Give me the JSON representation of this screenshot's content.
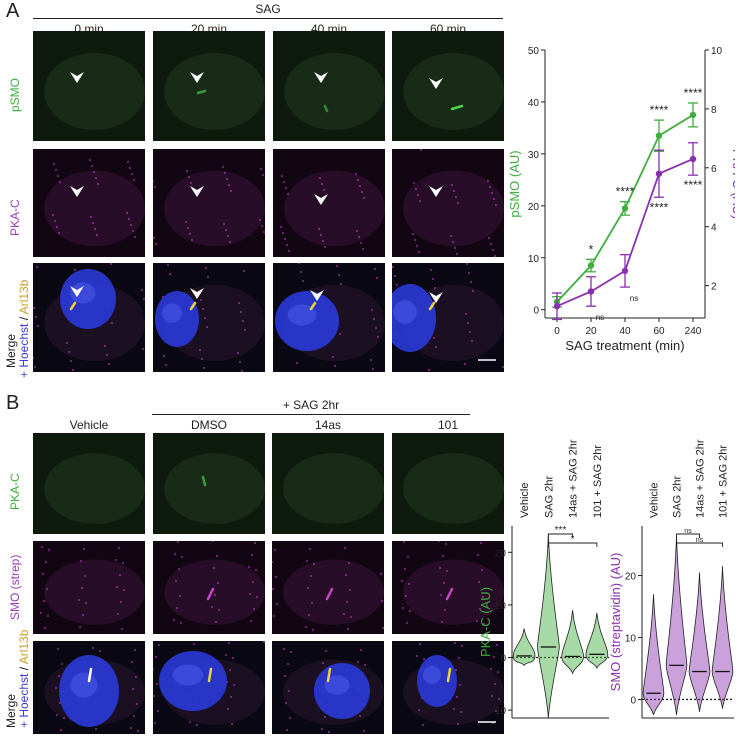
{
  "panel_a": {
    "label": "A",
    "treatment": "SAG",
    "timepoints": [
      "0 min",
      "20 min",
      "40 min",
      "60 min"
    ],
    "rows": [
      {
        "text": "pSMO",
        "color": "#3fae3f"
      },
      {
        "text": "PKA-C",
        "color": "#9b3db8"
      }
    ],
    "merge_label": {
      "line1": "Merge",
      "line2": [
        {
          "text": "+ Hoechst",
          "color": "#3a3ad0"
        },
        {
          "text": " / ",
          "color": "#222222"
        },
        {
          "text": "Arl13b",
          "color": "#c9a227"
        }
      ]
    }
  },
  "panel_b": {
    "label": "B",
    "treatment": "+ SAG 2hr",
    "conditions": [
      "Vehicle",
      "DMSO",
      "14as",
      "101"
    ],
    "rows": [
      {
        "text": "PKA-C",
        "color": "#3fae3f"
      },
      {
        "text": "SMO (strep)",
        "color": "#9b3db8"
      }
    ],
    "merge_label": {
      "line1": "Merge",
      "line2": [
        {
          "text": "+ Hoechst",
          "color": "#3a3ad0"
        },
        {
          "text": " / ",
          "color": "#222222"
        },
        {
          "text": "Arl13b",
          "color": "#c9a227"
        }
      ]
    }
  },
  "colors": {
    "green": "#3fae3f",
    "purple": "#8a2fb0",
    "nucleus": "#2a3ad8",
    "cilium_yellow": "#e9d23a"
  },
  "chart_data": [
    {
      "type": "line",
      "x": [
        "0",
        "20",
        "40",
        "60",
        "240"
      ],
      "xlabel": "SAG treatment (min)",
      "series": [
        {
          "name": "pSMO",
          "axis": "left",
          "color": "#3fae3f",
          "values": [
            1.5,
            8.5,
            19.5,
            33.5,
            37.5
          ],
          "error": [
            1.0,
            1.2,
            1.3,
            3.0,
            2.3
          ],
          "significance": [
            "",
            "*",
            "****",
            "****",
            "****"
          ]
        },
        {
          "name": "PKA-C",
          "axis": "right",
          "color": "#8a2fb0",
          "values": [
            1.3,
            1.8,
            2.5,
            5.8,
            6.3
          ],
          "error": [
            0.45,
            0.5,
            0.55,
            0.8,
            0.55
          ],
          "significance": [
            "",
            "ns",
            "ns",
            "****",
            "****"
          ]
        }
      ],
      "ylabel_left": "pSMO (AU)",
      "ylim_left": [
        -1.6,
        50
      ],
      "yticks_left": [
        0,
        10,
        20,
        30,
        40,
        50
      ],
      "ylabel_right": "PKA-C (AU)",
      "ylim_right": [
        0.9,
        10
      ],
      "yticks_right": [
        2,
        4,
        6,
        8,
        10
      ]
    },
    {
      "type": "violin",
      "categories": [
        "Vehicle",
        "SAG 2hr",
        "14as + SAG 2hr",
        "101 + SAG 2hr"
      ],
      "ylabel": "PKA-C (AU)",
      "ylabel_color": "#3fae3f",
      "color": "#3fae3f",
      "ylim": [
        -11.5,
        25
      ],
      "yticks": [
        -10,
        0,
        10,
        20
      ],
      "reference_line": 0,
      "medians": [
        0.3,
        2.0,
        0.2,
        0.6
      ],
      "spread": [
        {
          "min": -1.5,
          "max": 5.5
        },
        {
          "min": -11.5,
          "max": 23.5
        },
        {
          "min": -3.0,
          "max": 9.0
        },
        {
          "min": -2.0,
          "max": 8.5
        }
      ],
      "comparisons": [
        {
          "from": 1,
          "to": 2,
          "label": "***"
        },
        {
          "from": 1,
          "to": 3,
          "label": "*"
        }
      ]
    },
    {
      "type": "violin",
      "categories": [
        "Vehicle",
        "SAG 2hr",
        "14as + SAG 2hr",
        "101 + SAG 2hr"
      ],
      "ylabel": "SMO (streptavidin) (AU)",
      "ylabel_color": "#8a2fb0",
      "color": "#8a2fb0",
      "ylim": [
        -3,
        28
      ],
      "yticks": [
        0,
        10,
        20
      ],
      "reference_line": 0,
      "medians": [
        1.0,
        5.5,
        4.5,
        4.5
      ],
      "spread": [
        {
          "min": -2.5,
          "max": 17.0
        },
        {
          "min": -2.5,
          "max": 26.5
        },
        {
          "min": -2.0,
          "max": 20.5
        },
        {
          "min": -1.5,
          "max": 21.5
        }
      ],
      "comparisons": [
        {
          "from": 1,
          "to": 2,
          "label": "ns"
        },
        {
          "from": 1,
          "to": 3,
          "label": "ns"
        }
      ]
    }
  ]
}
